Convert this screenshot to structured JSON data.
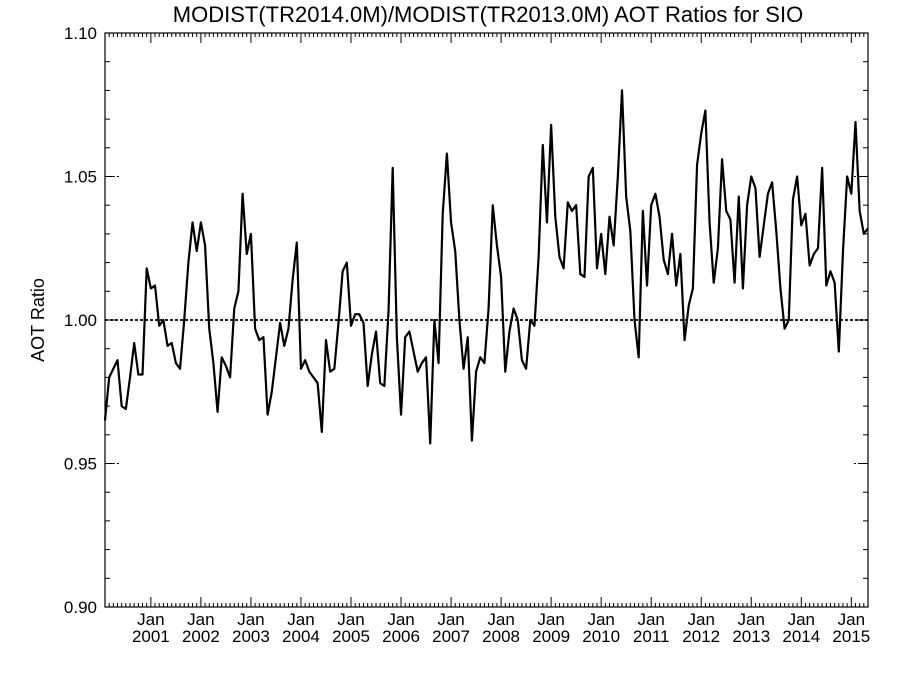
{
  "chart_data": {
    "type": "line",
    "title": "MODIST(TR2014.0M)/MODIST(TR2013.0M)  AOT Ratios for SIO",
    "ylabel": "AOT Ratio",
    "xlabel": "",
    "ylim": [
      0.9,
      1.1
    ],
    "y_ticks": [
      "0.90",
      "0.95",
      "1.00",
      "1.05",
      "1.10"
    ],
    "x_ticks": [
      {
        "top": "Jan",
        "bottom": "2001",
        "x": "2001-01"
      },
      {
        "top": "Jan",
        "bottom": "2002",
        "x": "2002-01"
      },
      {
        "top": "Jan",
        "bottom": "2003",
        "x": "2003-01"
      },
      {
        "top": "Jan",
        "bottom": "2004",
        "x": "2004-01"
      },
      {
        "top": "Jan",
        "bottom": "2005",
        "x": "2005-01"
      },
      {
        "top": "Jan",
        "bottom": "2006",
        "x": "2006-01"
      },
      {
        "top": "Jan",
        "bottom": "2007",
        "x": "2007-01"
      },
      {
        "top": "Jan",
        "bottom": "2008",
        "x": "2008-01"
      },
      {
        "top": "Jan",
        "bottom": "2009",
        "x": "2009-01"
      },
      {
        "top": "Jan",
        "bottom": "2010",
        "x": "2010-01"
      },
      {
        "top": "Jan",
        "bottom": "2011",
        "x": "2011-01"
      },
      {
        "top": "Jan",
        "bottom": "2012",
        "x": "2012-01"
      },
      {
        "top": "Jan",
        "bottom": "2013",
        "x": "2013-01"
      },
      {
        "top": "Jan",
        "bottom": "2014",
        "x": "2014-01"
      },
      {
        "top": "Jan",
        "bottom": "2015",
        "x": "2015-01"
      }
    ],
    "xlim": [
      "2000-02",
      "2015-05"
    ],
    "reference_line": 1.0,
    "series": [
      {
        "x": [
          "2000-02",
          "2000-03",
          "2000-04",
          "2000-05",
          "2000-06",
          "2000-07",
          "2000-08",
          "2000-09",
          "2000-10",
          "2000-11",
          "2000-12",
          "2001-01",
          "2001-02",
          "2001-03",
          "2001-04",
          "2001-05",
          "2001-06",
          "2001-07",
          "2001-08",
          "2001-09",
          "2001-10",
          "2001-11",
          "2001-12",
          "2002-01",
          "2002-02",
          "2002-03",
          "2002-04",
          "2002-05",
          "2002-06",
          "2002-07",
          "2002-08",
          "2002-09",
          "2002-10",
          "2002-11",
          "2002-12",
          "2003-01",
          "2003-02",
          "2003-03",
          "2003-04",
          "2003-05",
          "2003-06",
          "2003-07",
          "2003-08",
          "2003-09",
          "2003-10",
          "2003-11",
          "2003-12",
          "2004-01",
          "2004-02",
          "2004-03",
          "2004-04",
          "2004-05",
          "2004-06",
          "2004-07",
          "2004-08",
          "2004-09",
          "2004-10",
          "2004-11",
          "2004-12",
          "2005-01",
          "2005-02",
          "2005-03",
          "2005-04",
          "2005-05",
          "2005-06",
          "2005-07",
          "2005-08",
          "2005-09",
          "2005-10",
          "2005-11",
          "2005-12",
          "2006-01",
          "2006-02",
          "2006-03",
          "2006-04",
          "2006-05",
          "2006-06",
          "2006-07",
          "2006-08",
          "2006-09",
          "2006-10",
          "2006-11",
          "2006-12",
          "2007-01",
          "2007-02",
          "2007-03",
          "2007-04",
          "2007-05",
          "2007-06",
          "2007-07",
          "2007-08",
          "2007-09",
          "2007-10",
          "2007-11",
          "2007-12",
          "2008-01",
          "2008-02",
          "2008-03",
          "2008-04",
          "2008-05",
          "2008-06",
          "2008-07",
          "2008-08",
          "2008-09",
          "2008-10",
          "2008-11",
          "2008-12",
          "2009-01",
          "2009-02",
          "2009-03",
          "2009-04",
          "2009-05",
          "2009-06",
          "2009-07",
          "2009-08",
          "2009-09",
          "2009-10",
          "2009-11",
          "2009-12",
          "2010-01",
          "2010-02",
          "2010-03",
          "2010-04",
          "2010-05",
          "2010-06",
          "2010-07",
          "2010-08",
          "2010-09",
          "2010-10",
          "2010-11",
          "2010-12",
          "2011-01",
          "2011-02",
          "2011-03",
          "2011-04",
          "2011-05",
          "2011-06",
          "2011-07",
          "2011-08",
          "2011-09",
          "2011-10",
          "2011-11",
          "2011-12",
          "2012-01",
          "2012-02",
          "2012-03",
          "2012-04",
          "2012-05",
          "2012-06",
          "2012-07",
          "2012-08",
          "2012-09",
          "2012-10",
          "2012-11",
          "2012-12",
          "2013-01",
          "2013-02",
          "2013-03",
          "2013-04",
          "2013-05",
          "2013-06",
          "2013-07",
          "2013-08",
          "2013-09",
          "2013-10",
          "2013-11",
          "2013-12",
          "2014-01",
          "2014-02",
          "2014-03",
          "2014-04",
          "2014-05",
          "2014-06",
          "2014-07",
          "2014-08",
          "2014-09",
          "2014-10",
          "2014-11",
          "2014-12",
          "2015-01",
          "2015-02",
          "2015-03",
          "2015-04",
          "2015-05"
        ],
        "values": [
          0.965,
          0.98,
          0.983,
          0.986,
          0.97,
          0.969,
          0.98,
          0.992,
          0.981,
          0.981,
          1.018,
          1.011,
          1.012,
          0.998,
          1.0,
          0.991,
          0.992,
          0.985,
          0.983,
          1.0,
          1.02,
          1.034,
          1.024,
          1.034,
          1.026,
          0.997,
          0.985,
          0.968,
          0.987,
          0.984,
          0.98,
          1.004,
          1.01,
          1.044,
          1.023,
          1.03,
          0.997,
          0.993,
          0.994,
          0.967,
          0.975,
          0.987,
          0.999,
          0.991,
          0.997,
          1.014,
          1.027,
          0.983,
          0.986,
          0.982,
          0.98,
          0.978,
          0.961,
          0.993,
          0.982,
          0.983,
          0.999,
          1.017,
          1.02,
          0.998,
          1.002,
          1.002,
          0.999,
          0.977,
          0.988,
          0.996,
          0.978,
          0.977,
          1.003,
          1.053,
          0.994,
          0.967,
          0.994,
          0.996,
          0.989,
          0.982,
          0.985,
          0.987,
          0.957,
          1.0,
          0.985,
          1.037,
          1.058,
          1.034,
          1.024,
          1.0,
          0.983,
          0.994,
          0.958,
          0.982,
          0.987,
          0.985,
          1.004,
          1.04,
          1.026,
          1.015,
          0.982,
          0.996,
          1.004,
          1.0,
          0.986,
          0.983,
          1.0,
          0.998,
          1.022,
          1.061,
          1.034,
          1.068,
          1.036,
          1.022,
          1.018,
          1.041,
          1.038,
          1.04,
          1.016,
          1.015,
          1.05,
          1.053,
          1.018,
          1.03,
          1.016,
          1.036,
          1.026,
          1.05,
          1.08,
          1.043,
          1.031,
          1.0,
          0.987,
          1.038,
          1.012,
          1.04,
          1.044,
          1.036,
          1.021,
          1.016,
          1.03,
          1.012,
          1.023,
          0.993,
          1.005,
          1.011,
          1.054,
          1.065,
          1.073,
          1.034,
          1.013,
          1.025,
          1.056,
          1.038,
          1.035,
          1.013,
          1.043,
          1.011,
          1.04,
          1.05,
          1.046,
          1.022,
          1.033,
          1.044,
          1.048,
          1.031,
          1.011,
          0.997,
          1.0,
          1.042,
          1.05,
          1.033,
          1.037,
          1.019,
          1.023,
          1.025,
          1.053,
          1.012,
          1.017,
          1.013,
          0.989,
          1.024,
          1.05,
          1.044,
          1.069,
          1.038,
          1.03,
          1.032
        ]
      }
    ]
  }
}
